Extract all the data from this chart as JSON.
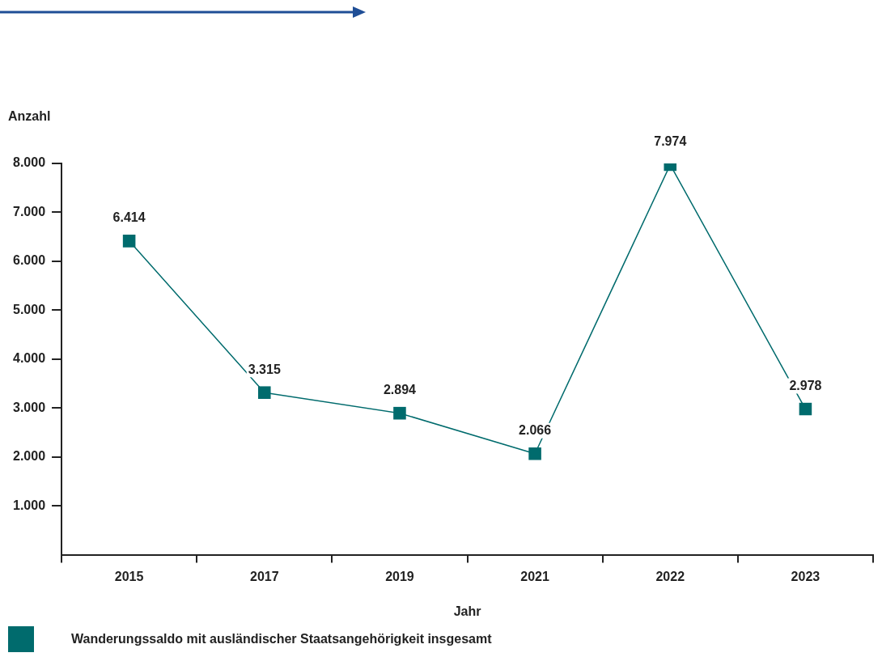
{
  "chart_data": {
    "type": "line",
    "xlabel": "Jahr",
    "ylabel": "Anzahl",
    "categories": [
      "2015",
      "2017",
      "2019",
      "2021",
      "2022",
      "2023"
    ],
    "series": [
      {
        "name": "Wanderungssaldo mit ausländischer Staatsangehörigkeit insgesamt",
        "color": "#006b6d",
        "values": [
          6414,
          3315,
          2894,
          2066,
          7974,
          2978
        ],
        "value_labels": [
          "6.414",
          "3.315",
          "2.894",
          "2.066",
          "7.974",
          "2.978"
        ]
      }
    ],
    "ylim": [
      0,
      8000
    ],
    "yticks": [
      {
        "value": 1000,
        "label": "1.000"
      },
      {
        "value": 2000,
        "label": "2.000"
      },
      {
        "value": 3000,
        "label": "3.000"
      },
      {
        "value": 4000,
        "label": "4.000"
      },
      {
        "value": 5000,
        "label": "5.000"
      },
      {
        "value": 6000,
        "label": "6.000"
      },
      {
        "value": 7000,
        "label": "7.000"
      },
      {
        "value": 8000,
        "label": "8.000"
      }
    ],
    "grid": false,
    "legend": "bottom",
    "marker": "square",
    "line_style": "solid"
  }
}
